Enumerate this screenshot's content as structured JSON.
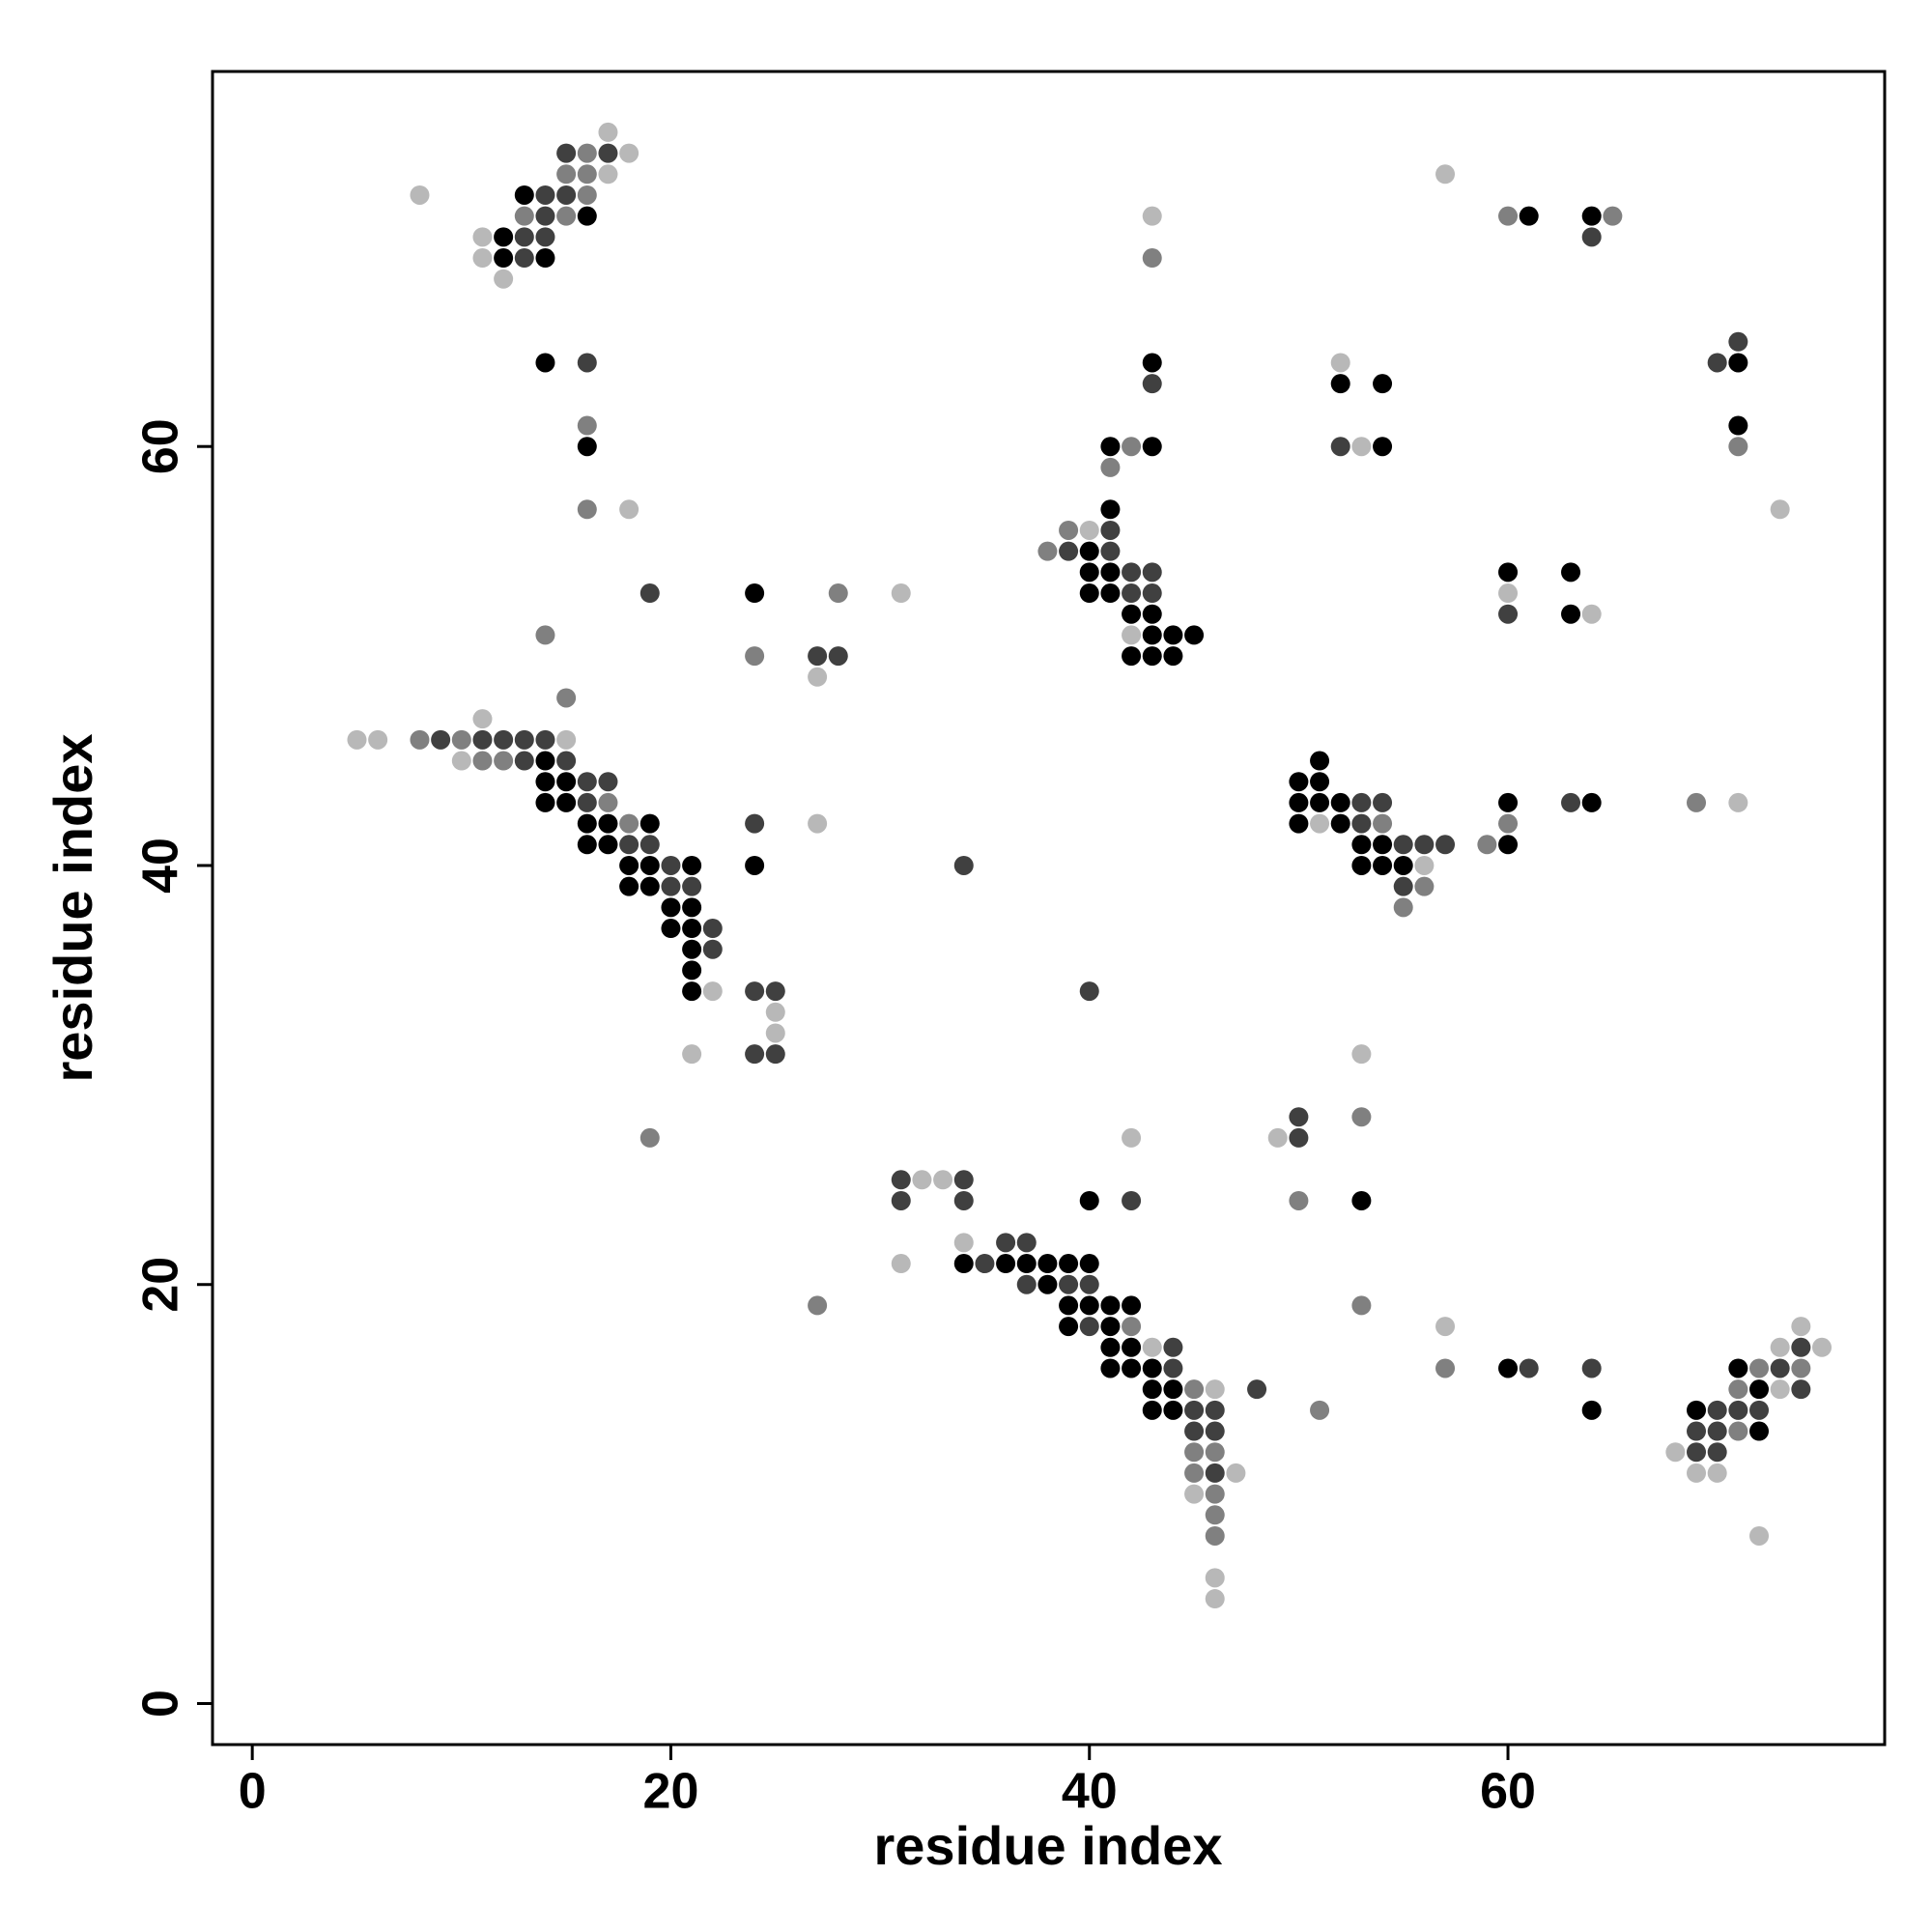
{
  "chart_data": {
    "type": "scatter",
    "x_label": "residue index",
    "y_label": "residue index",
    "xlim": [
      -1.9,
      78
    ],
    "ylim": [
      -1.96,
      77.9
    ],
    "xticks": [
      0,
      20,
      40,
      60
    ],
    "yticks": [
      0,
      20,
      40,
      60
    ],
    "series": [
      {
        "color": "#000000",
        "x": [
          16,
          13,
          12,
          12,
          14,
          61,
          64,
          14,
          43,
          71,
          52,
          54,
          71,
          16,
          41,
          43,
          54,
          41,
          40,
          40,
          41,
          60,
          63,
          24,
          40,
          41,
          42,
          43,
          63,
          43,
          44,
          45,
          42,
          43,
          44,
          14,
          51,
          14,
          15,
          50,
          51,
          14,
          15,
          50,
          51,
          52,
          60,
          64,
          16,
          17,
          19,
          50,
          52,
          16,
          17,
          53,
          54,
          60,
          18,
          19,
          21,
          24,
          53,
          54,
          55,
          18,
          19,
          20,
          21,
          20,
          21,
          21,
          21,
          21,
          40,
          53,
          34,
          36,
          37,
          38,
          39,
          40,
          38,
          39,
          40,
          41,
          42,
          39,
          41,
          41,
          42,
          41,
          42,
          43,
          60,
          71,
          43,
          44,
          72,
          43,
          44,
          64,
          69,
          72
        ],
        "values": [
          71,
          72,
          70,
          69,
          69,
          71,
          71,
          64,
          64,
          64,
          63,
          63,
          61,
          60,
          60,
          60,
          60,
          57,
          55,
          54,
          54,
          54,
          54,
          53,
          53,
          53,
          52,
          52,
          52,
          51,
          51,
          51,
          50,
          50,
          50,
          45,
          45,
          44,
          44,
          44,
          44,
          43,
          43,
          43,
          43,
          43,
          43,
          43,
          42,
          42,
          42,
          42,
          42,
          41,
          41,
          41,
          41,
          41,
          40,
          40,
          40,
          40,
          40,
          40,
          40,
          39,
          39,
          38,
          38,
          37,
          37,
          36,
          35,
          34,
          24,
          24,
          21,
          21,
          21,
          21,
          21,
          21,
          20,
          19,
          19,
          19,
          19,
          18,
          18,
          17,
          17,
          16,
          16,
          16,
          16,
          16,
          15,
          15,
          15,
          14,
          14,
          14,
          14,
          13
        ]
      },
      {
        "color": "#404040",
        "x": [
          15,
          17,
          14,
          15,
          14,
          13,
          14,
          64,
          13,
          16,
          71,
          70,
          43,
          52,
          41,
          39,
          41,
          42,
          43,
          19,
          43,
          42,
          60,
          27,
          28,
          9,
          11,
          12,
          13,
          14,
          13,
          15,
          16,
          17,
          16,
          53,
          54,
          63,
          24,
          53,
          18,
          19,
          55,
          56,
          57,
          20,
          34,
          20,
          21,
          55,
          22,
          22,
          24,
          25,
          40,
          24,
          25,
          50,
          50,
          31,
          34,
          31,
          34,
          42,
          36,
          37,
          35,
          37,
          39,
          40,
          40,
          44,
          74,
          44,
          61,
          64,
          73,
          48,
          74,
          45,
          46,
          70,
          71,
          72,
          45,
          46,
          69,
          70,
          69,
          70,
          46
        ],
        "values": [
          74,
          74,
          72,
          72,
          71,
          70,
          70,
          70,
          69,
          64,
          65,
          64,
          63,
          60,
          56,
          55,
          55,
          54,
          54,
          53,
          53,
          53,
          52,
          50,
          50,
          46,
          46,
          46,
          46,
          46,
          45,
          45,
          44,
          44,
          43,
          43,
          43,
          43,
          42,
          42,
          41,
          41,
          41,
          41,
          41,
          40,
          40,
          39,
          39,
          39,
          37,
          36,
          34,
          34,
          34,
          31,
          31,
          28,
          27,
          25,
          25,
          24,
          24,
          24,
          22,
          22,
          21,
          20,
          20,
          20,
          18,
          17,
          17,
          16,
          16,
          16,
          16,
          15,
          15,
          14,
          14,
          14,
          14,
          14,
          13,
          13,
          13,
          13,
          12,
          12,
          11
        ]
      },
      {
        "color": "#808080",
        "x": [
          16,
          15,
          16,
          16,
          13,
          15,
          60,
          65,
          43,
          16,
          42,
          71,
          41,
          16,
          39,
          38,
          28,
          14,
          24,
          15,
          8,
          10,
          11,
          12,
          17,
          69,
          18,
          54,
          60,
          59,
          56,
          55,
          53,
          19,
          50,
          27,
          53,
          42,
          57,
          72,
          74,
          45,
          71,
          51,
          71,
          45,
          46,
          45,
          46,
          46,
          46
        ],
        "values": [
          74,
          73,
          73,
          72,
          71,
          71,
          71,
          71,
          69,
          61,
          60,
          60,
          59,
          57,
          56,
          55,
          53,
          51,
          50,
          48,
          46,
          46,
          45,
          45,
          43,
          43,
          42,
          42,
          42,
          41,
          39,
          38,
          28,
          27,
          24,
          19,
          19,
          18,
          16,
          16,
          16,
          15,
          15,
          14,
          13,
          12,
          12,
          11,
          10,
          9,
          8
        ]
      },
      {
        "color": "#b8b8b8",
        "x": [
          17,
          18,
          17,
          57,
          8,
          43,
          11,
          11,
          12,
          52,
          53,
          18,
          73,
          40,
          31,
          60,
          64,
          42,
          27,
          11,
          5,
          6,
          15,
          10,
          71,
          27,
          51,
          56,
          22,
          25,
          25,
          21,
          53,
          42,
          49,
          32,
          33,
          34,
          31,
          57,
          74,
          43,
          73,
          75,
          46,
          73,
          68,
          47,
          69,
          70,
          45,
          72,
          46,
          46
        ],
        "values": [
          75,
          74,
          73,
          73,
          72,
          71,
          70,
          69,
          68,
          64,
          60,
          57,
          57,
          56,
          53,
          53,
          52,
          51,
          49,
          47,
          46,
          46,
          46,
          45,
          43,
          42,
          42,
          40,
          34,
          33,
          32,
          31,
          31,
          27,
          27,
          25,
          25,
          22,
          21,
          18,
          18,
          17,
          17,
          17,
          15,
          15,
          12,
          11,
          11,
          11,
          10,
          8,
          6,
          5
        ]
      }
    ]
  }
}
